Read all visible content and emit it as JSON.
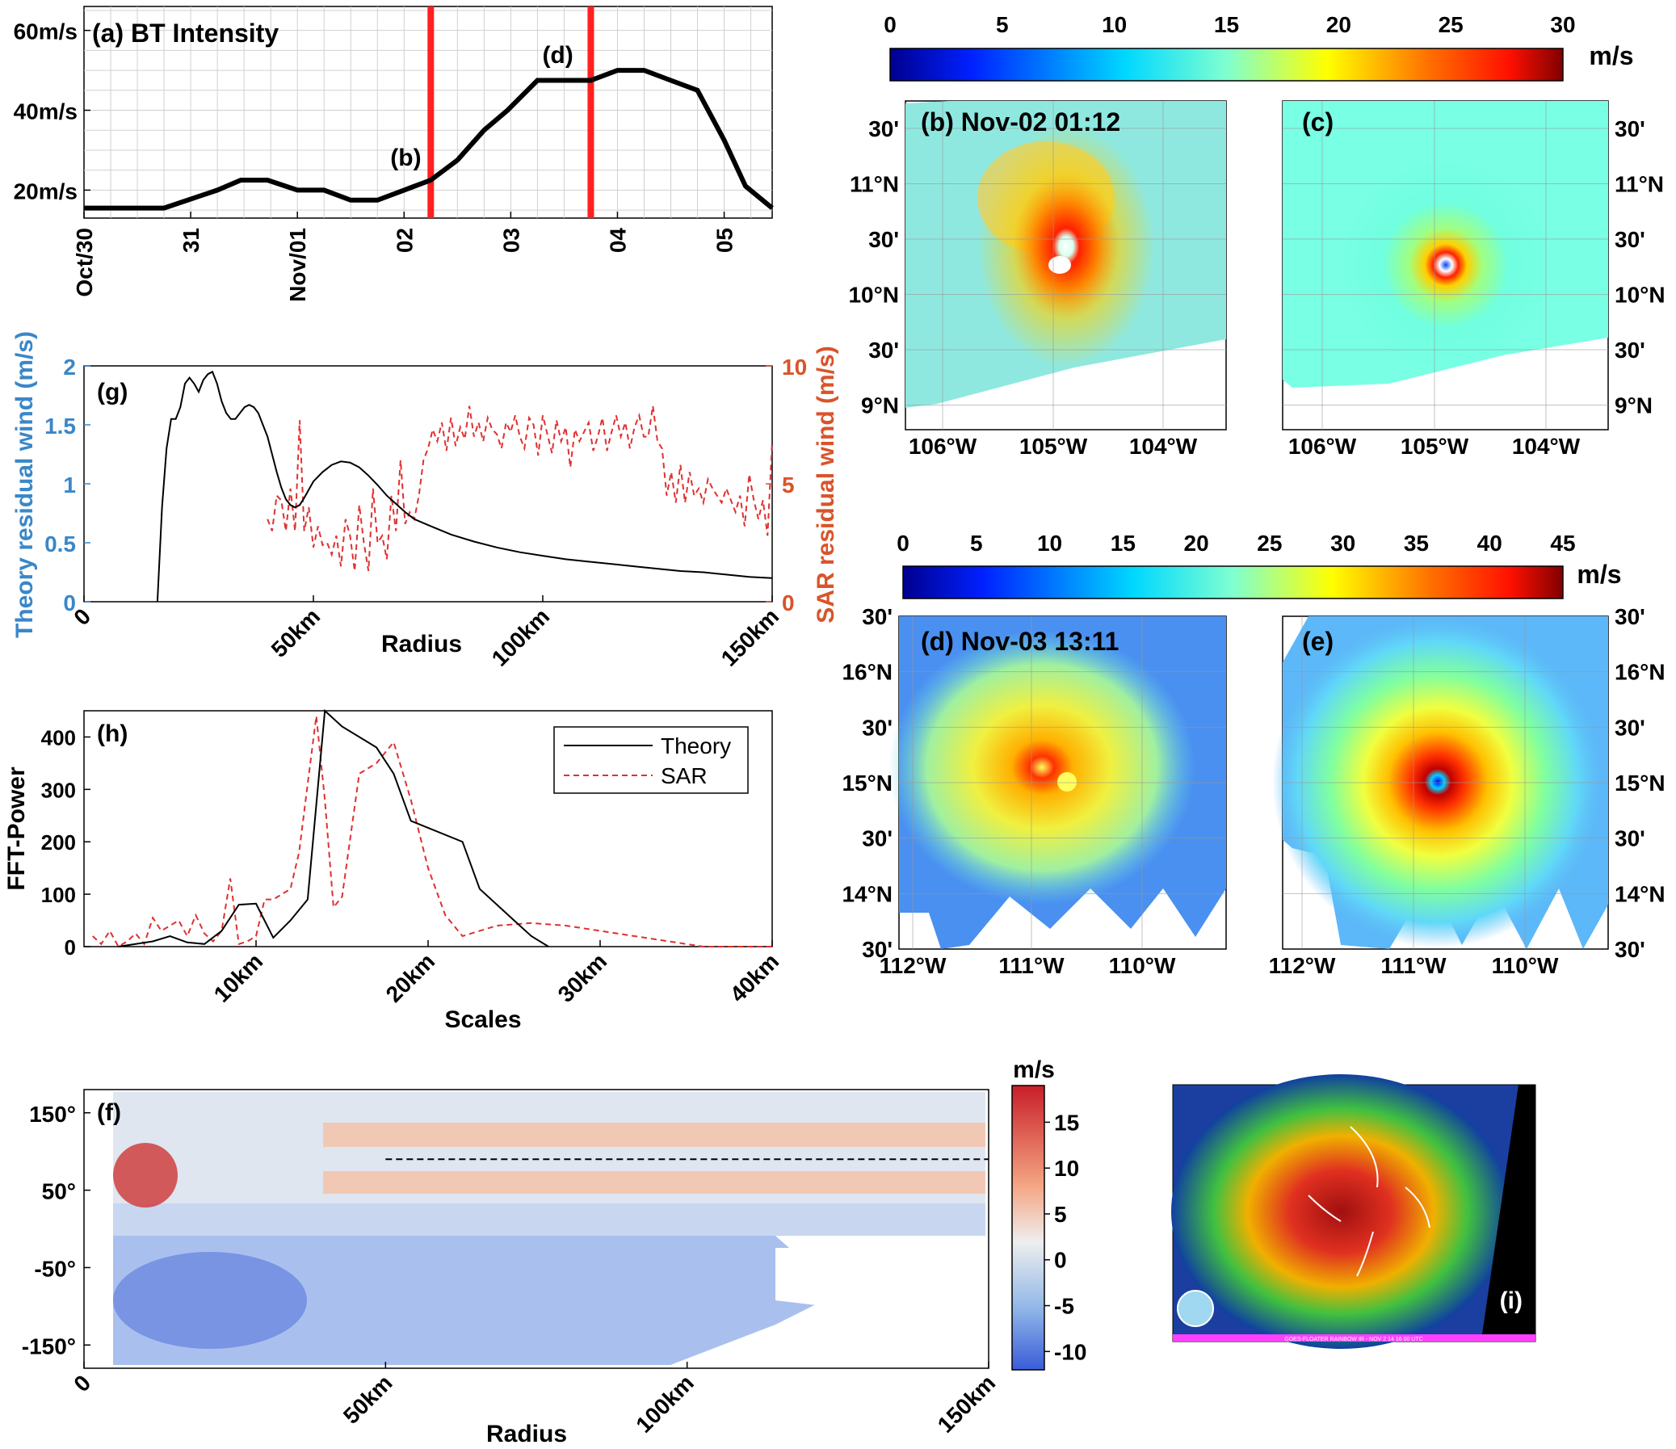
{
  "chart_data": [
    {
      "id": "a",
      "type": "line",
      "title": "(a) BT Intensity",
      "x_tick_labels": [
        "Oct/30",
        "31",
        "Nov/01",
        "02",
        "03",
        "04",
        "05"
      ],
      "x_ticks": [
        0,
        1,
        2,
        3,
        4,
        5,
        6
      ],
      "xlim": [
        0,
        6.45
      ],
      "y_tick_labels": [
        "20m/s",
        "40m/s",
        "60m/s"
      ],
      "y_ticks": [
        20,
        40,
        60
      ],
      "ylim": [
        13,
        66
      ],
      "series": [
        {
          "x": [
            0,
            0.75,
            1.25,
            1.47,
            1.72,
            2.0,
            2.25,
            2.5,
            2.75,
            3.0,
            3.25,
            3.5,
            3.75,
            3.97,
            4.25,
            4.5,
            4.75,
            5.0,
            5.25,
            5.5,
            5.75,
            6.0,
            6.2,
            6.45
          ],
          "values": [
            15.5,
            15.5,
            20,
            22.5,
            22.5,
            20,
            20,
            17.5,
            17.5,
            20,
            22.5,
            27.5,
            35,
            40,
            47.5,
            47.5,
            47.5,
            50,
            50,
            47.5,
            45,
            32.5,
            21,
            15.5
          ]
        }
      ],
      "markers": [
        {
          "x": 3.25,
          "label": "(b)"
        },
        {
          "x": 4.75,
          "label": "(d)"
        }
      ]
    },
    {
      "id": "g",
      "type": "line",
      "title": "(g)",
      "xlabel": "Radius",
      "ylabel": "Theory residual wind (m/s)",
      "y2label": "SAR residual wind (m/s)",
      "x_tick_labels": [
        "0",
        "50km",
        "100km",
        "150km"
      ],
      "x_ticks": [
        0,
        50,
        100,
        150
      ],
      "xlim": [
        0,
        150
      ],
      "y_ticks": [
        0,
        0.5,
        1,
        1.5,
        2
      ],
      "y_tick_labels": [
        "0",
        "0.5",
        "1",
        "1.5",
        "2"
      ],
      "ylim": [
        0,
        2
      ],
      "y2_ticks": [
        0,
        5,
        10
      ],
      "y2_tick_labels": [
        "0",
        "5",
        "10"
      ],
      "y2lim": [
        0,
        10
      ],
      "series": [
        {
          "axis": "left",
          "x": [
            16,
            17,
            18,
            19,
            20,
            21,
            22,
            23,
            24,
            25,
            26,
            27,
            28,
            29,
            30,
            31,
            32,
            33,
            34,
            35,
            36,
            37,
            38,
            39,
            40,
            41,
            42,
            43,
            44,
            45,
            46,
            47,
            48,
            49,
            50,
            52,
            54,
            56,
            58,
            60,
            62,
            64,
            66,
            68,
            70,
            72,
            75,
            80,
            85,
            90,
            95,
            100,
            105,
            110,
            115,
            120,
            125,
            130,
            135,
            140,
            145,
            150
          ],
          "values": [
            0,
            0.8,
            1.3,
            1.55,
            1.55,
            1.65,
            1.85,
            1.9,
            1.85,
            1.78,
            1.88,
            1.93,
            1.95,
            1.85,
            1.7,
            1.6,
            1.55,
            1.55,
            1.6,
            1.65,
            1.67,
            1.65,
            1.6,
            1.5,
            1.4,
            1.25,
            1.1,
            0.97,
            0.87,
            0.82,
            0.8,
            0.82,
            0.88,
            0.95,
            1.02,
            1.1,
            1.16,
            1.19,
            1.18,
            1.14,
            1.07,
            0.99,
            0.9,
            0.83,
            0.76,
            0.7,
            0.65,
            0.57,
            0.51,
            0.46,
            0.42,
            0.39,
            0.36,
            0.34,
            0.32,
            0.3,
            0.28,
            0.26,
            0.25,
            0.23,
            0.21,
            0.2
          ]
        },
        {
          "axis": "right",
          "x": [
            40,
            41,
            42,
            43,
            44,
            45,
            46,
            47,
            48,
            49,
            50,
            51,
            52,
            53,
            54,
            55,
            56,
            57,
            58,
            59,
            60,
            61,
            62,
            63,
            64,
            65,
            66,
            67,
            68,
            69,
            70,
            71,
            72,
            73,
            74,
            75,
            76,
            77,
            78,
            79,
            80,
            81,
            82,
            83,
            84,
            85,
            86,
            87,
            88,
            89,
            90,
            91,
            92,
            93,
            94,
            95,
            96,
            97,
            98,
            99,
            100,
            101,
            102,
            103,
            104,
            105,
            106,
            107,
            108,
            109,
            110,
            111,
            112,
            113,
            114,
            115,
            116,
            117,
            118,
            119,
            120,
            121,
            122,
            123,
            124,
            125,
            126,
            127,
            128,
            129,
            130,
            131,
            132,
            133,
            134,
            135,
            136,
            137,
            138,
            139,
            140,
            141,
            142,
            143,
            144,
            145,
            146,
            147,
            148,
            149,
            150
          ],
          "values": [
            3.5,
            3,
            4.5,
            4.3,
            3,
            4.8,
            3,
            7.7,
            3,
            4,
            2.3,
            3.2,
            2.4,
            2.5,
            2,
            2.8,
            1.5,
            3.5,
            2.8,
            1.3,
            4.1,
            2.5,
            1.3,
            4.8,
            2.5,
            2.8,
            1.8,
            4.5,
            3,
            6,
            3.3,
            3.8,
            3.5,
            4.5,
            6,
            6.5,
            7.3,
            6.8,
            7.6,
            6.4,
            7.8,
            6.6,
            7.4,
            6.9,
            8.3,
            7,
            7.6,
            6.8,
            7.8,
            7.3,
            7.1,
            6.5,
            7.6,
            7.2,
            7.9,
            7,
            6.5,
            7.8,
            7.5,
            6.2,
            7.9,
            7.1,
            6.3,
            7.7,
            6.8,
            7.4,
            5.7,
            7.3,
            6.8,
            7.2,
            7.6,
            6.4,
            7,
            7.8,
            6.4,
            7.2,
            7.9,
            7,
            7.6,
            6.5,
            7.4,
            7.9,
            7,
            7,
            8.3,
            6.8,
            6.5,
            4.5,
            5.5,
            4.2,
            5.8,
            4.2,
            5.5,
            4.5,
            4.8,
            4.2,
            5.2,
            4.8,
            4.5,
            4.2,
            4.8,
            4.3,
            3.8,
            4.5,
            3.2,
            5.4,
            4.3,
            3.5,
            4.3,
            2.8,
            6.8
          ]
        }
      ]
    },
    {
      "id": "h",
      "type": "line",
      "title": "(h)",
      "xlabel": "Scales",
      "ylabel": "FFT-Power",
      "x_tick_labels": [
        "10km",
        "20km",
        "30km",
        "40km"
      ],
      "x_ticks": [
        10,
        20,
        30,
        40
      ],
      "xlim": [
        0,
        40
      ],
      "y_ticks": [
        0,
        100,
        200,
        300,
        400
      ],
      "y_tick_labels": [
        "0",
        "100",
        "200",
        "300",
        "400"
      ],
      "ylim": [
        0,
        450
      ],
      "legend": [
        "Theory",
        "SAR"
      ],
      "series": [
        {
          "name": "Theory",
          "x": [
            2,
            3,
            4,
            5,
            6,
            7,
            8,
            9,
            10,
            11,
            12,
            13,
            14,
            15,
            17,
            18,
            19,
            22,
            23,
            25,
            26,
            27
          ],
          "values": [
            0,
            5,
            10,
            20,
            8,
            5,
            30,
            80,
            82,
            17,
            50,
            90,
            450,
            420,
            380,
            330,
            240,
            200,
            110,
            50,
            20,
            0
          ]
        },
        {
          "name": "SAR",
          "x": [
            0.5,
            1,
            1.5,
            2,
            2.5,
            3,
            3.5,
            4,
            4.5,
            5,
            5.5,
            6,
            6.5,
            7,
            7.5,
            8,
            8.5,
            9,
            9.5,
            10,
            10.5,
            11,
            12,
            12.5,
            13,
            13.5,
            14,
            14.5,
            15,
            16,
            17,
            18,
            19,
            20,
            21,
            22,
            24,
            26,
            28,
            30,
            32,
            34,
            36,
            38,
            40
          ],
          "values": [
            20,
            5,
            30,
            0,
            10,
            25,
            5,
            55,
            30,
            40,
            50,
            20,
            60,
            25,
            10,
            30,
            130,
            5,
            10,
            20,
            90,
            90,
            110,
            180,
            310,
            440,
            280,
            75,
            95,
            330,
            350,
            390,
            280,
            150,
            60,
            20,
            40,
            45,
            40,
            30,
            20,
            10,
            0,
            0,
            0
          ]
        }
      ]
    },
    {
      "id": "f",
      "type": "heatmap",
      "title": "(f)",
      "xlabel": "Radius",
      "x_tick_labels": [
        "0",
        "50km",
        "100km",
        "150km"
      ],
      "x_ticks": [
        0,
        50,
        100,
        150
      ],
      "xlim": [
        0,
        150
      ],
      "y_tick_labels": [
        "150°",
        "50°",
        "-50°",
        "-150°"
      ],
      "y_ticks": [
        150,
        50,
        -50,
        -150
      ],
      "ylim": [
        -180,
        180
      ],
      "colorbar": {
        "label": "m/s",
        "ticks": [
          15,
          10,
          5,
          0,
          -5,
          -10
        ],
        "range": [
          -12,
          19
        ]
      },
      "dashed_line": {
        "y": 90,
        "x_start": 50,
        "x_end": 150
      }
    }
  ],
  "maps": [
    {
      "id": "b",
      "title": "(b) Nov-02 01:12",
      "lat_labels": [
        "30'",
        "11°N",
        "30'",
        "10°N",
        "30'",
        "9°N"
      ],
      "lon_labels": [
        "106°W",
        "105°W",
        "104°W"
      ],
      "lat_side": "left"
    },
    {
      "id": "c",
      "title": "(c)",
      "lat_labels": [
        "30'",
        "11°N",
        "30'",
        "10°N",
        "30'",
        "9°N"
      ],
      "lon_labels": [
        "106°W",
        "105°W",
        "104°W"
      ],
      "lat_side": "right"
    },
    {
      "id": "d",
      "title": "(d) Nov-03 13:11",
      "lat_labels": [
        "30'",
        "16°N",
        "30'",
        "15°N",
        "30'",
        "14°N",
        "30'"
      ],
      "lon_labels": [
        "112°W",
        "111°W",
        "110°W"
      ],
      "lat_side": "left"
    },
    {
      "id": "e",
      "title": "(e)",
      "lat_labels": [
        "30'",
        "16°N",
        "30'",
        "15°N",
        "30'",
        "14°N",
        "30'"
      ],
      "lon_labels": [
        "112°W",
        "111°W",
        "110°W"
      ],
      "lat_side": "right"
    }
  ],
  "colorbar_top": {
    "ticks": [
      "0",
      "5",
      "10",
      "15",
      "20",
      "25",
      "30"
    ],
    "unit": "m/s"
  },
  "colorbar_mid": {
    "ticks": [
      "0",
      "5",
      "10",
      "15",
      "20",
      "25",
      "30",
      "35",
      "40",
      "45"
    ],
    "unit": "m/s"
  },
  "satellite": {
    "label": "(i)",
    "caption": "GOES-FLOATER RAINBOW IR - NOV 2 14 16 00 UTC"
  },
  "colors": {
    "theory": "#000000",
    "sar": "#e03030",
    "left_axis": "#3a87c8",
    "right_axis": "#d9542a",
    "marker": "#ff2020"
  }
}
